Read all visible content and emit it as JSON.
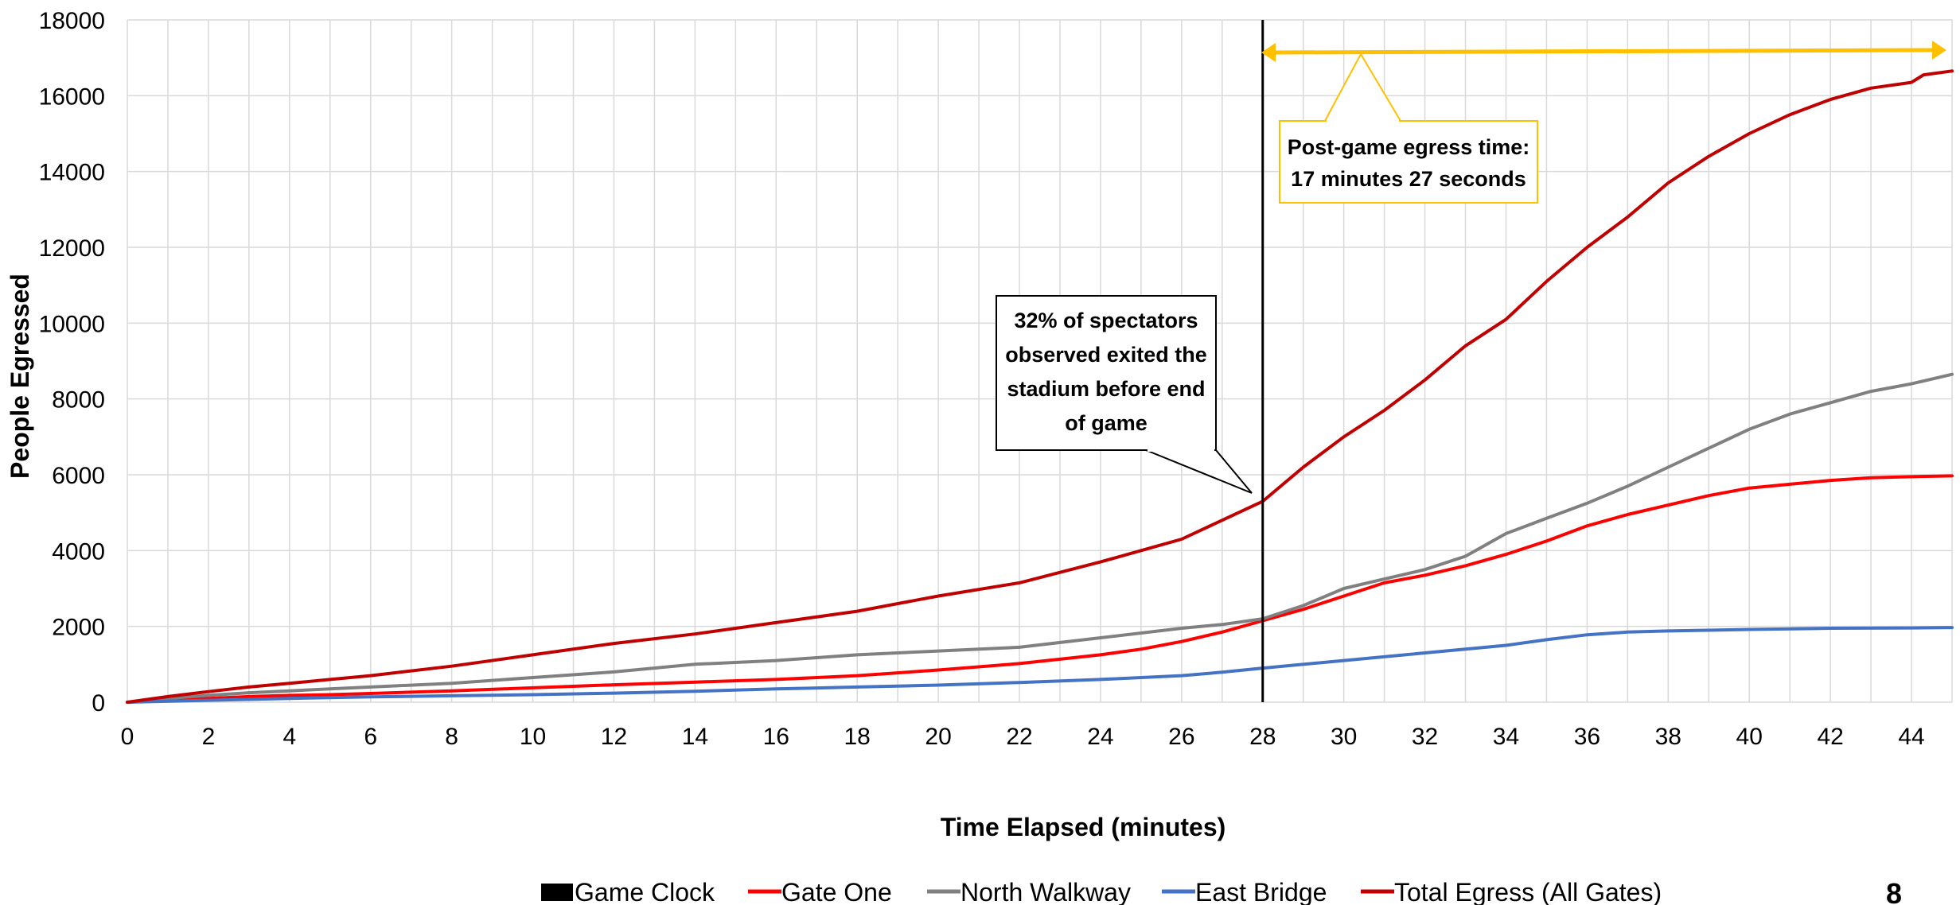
{
  "chart_data": {
    "type": "line",
    "title": "",
    "xlabel": "Time Elapsed (minutes)",
    "ylabel": "People Egressed",
    "xlim": [
      0,
      45
    ],
    "ylim": [
      0,
      18000
    ],
    "x_ticks": [
      0,
      2,
      4,
      6,
      8,
      10,
      12,
      14,
      16,
      18,
      20,
      22,
      24,
      26,
      28,
      30,
      32,
      34,
      36,
      38,
      40,
      42,
      44
    ],
    "y_ticks": [
      0,
      2000,
      4000,
      6000,
      8000,
      10000,
      12000,
      14000,
      16000,
      18000
    ],
    "grid": true,
    "legend_position": "bottom",
    "game_clock": {
      "name": "Game Clock",
      "x": 28,
      "color": "#000000"
    },
    "series": [
      {
        "name": "Gate One",
        "color": "#ff0000",
        "x": [
          0,
          1,
          2,
          3,
          4,
          5,
          6,
          8,
          10,
          12,
          14,
          16,
          18,
          20,
          22,
          24,
          25,
          26,
          27,
          28,
          29,
          30,
          31,
          32,
          33,
          34,
          35,
          36,
          37,
          38,
          39,
          40,
          41,
          42,
          43,
          44,
          45
        ],
        "y": [
          0,
          50,
          100,
          150,
          180,
          200,
          230,
          300,
          380,
          460,
          530,
          600,
          700,
          850,
          1020,
          1250,
          1400,
          1600,
          1850,
          2150,
          2450,
          2800,
          3150,
          3350,
          3600,
          3900,
          4250,
          4650,
          4950,
          5200,
          5450,
          5650,
          5750,
          5850,
          5920,
          5950,
          5970
        ]
      },
      {
        "name": "North Walkway",
        "color": "#808080",
        "x": [
          0,
          1,
          2,
          3,
          4,
          5,
          6,
          8,
          10,
          12,
          14,
          16,
          18,
          20,
          22,
          24,
          26,
          27,
          28,
          29,
          30,
          31,
          32,
          33,
          34,
          35,
          36,
          37,
          38,
          39,
          40,
          41,
          42,
          43,
          44,
          45
        ],
        "y": [
          0,
          100,
          180,
          250,
          300,
          350,
          400,
          500,
          650,
          800,
          1000,
          1100,
          1250,
          1350,
          1450,
          1700,
          1950,
          2050,
          2200,
          2550,
          3000,
          3250,
          3500,
          3850,
          4450,
          4850,
          5250,
          5700,
          6200,
          6700,
          7200,
          7600,
          7900,
          8200,
          8400,
          8650
        ]
      },
      {
        "name": "East Bridge",
        "color": "#4472c4",
        "x": [
          0,
          2,
          4,
          6,
          8,
          10,
          12,
          14,
          16,
          18,
          20,
          22,
          24,
          26,
          27,
          28,
          30,
          32,
          34,
          35,
          36,
          37,
          38,
          40,
          42,
          44,
          45
        ],
        "y": [
          0,
          50,
          100,
          140,
          170,
          200,
          240,
          290,
          350,
          400,
          450,
          520,
          600,
          700,
          790,
          900,
          1100,
          1300,
          1500,
          1650,
          1780,
          1850,
          1880,
          1920,
          1950,
          1960,
          1970
        ]
      },
      {
        "name": "Total Egress (All Gates)",
        "color": "#c00000",
        "x": [
          0,
          1,
          2,
          3,
          4,
          5,
          6,
          8,
          10,
          12,
          14,
          16,
          18,
          20,
          22,
          24,
          25,
          26,
          27,
          28,
          29,
          30,
          31,
          32,
          33,
          34,
          35,
          36,
          37,
          38,
          39,
          40,
          41,
          42,
          43,
          44,
          44.3,
          45
        ],
        "y": [
          0,
          150,
          280,
          400,
          500,
          600,
          700,
          950,
          1250,
          1550,
          1800,
          2100,
          2400,
          2800,
          3150,
          3700,
          4000,
          4300,
          4800,
          5300,
          6200,
          7000,
          7700,
          8500,
          9400,
          10100,
          11100,
          12000,
          12800,
          13700,
          14400,
          15000,
          15500,
          15900,
          16200,
          16350,
          16550,
          16650
        ]
      }
    ],
    "annotations": [
      {
        "lines": [
          "32% of spectators",
          "observed exited the",
          "stadium before end",
          "of game"
        ]
      },
      {
        "lines": [
          "Post-game egress time:",
          "17 minutes 27 seconds"
        ]
      }
    ],
    "page_number": "8"
  }
}
